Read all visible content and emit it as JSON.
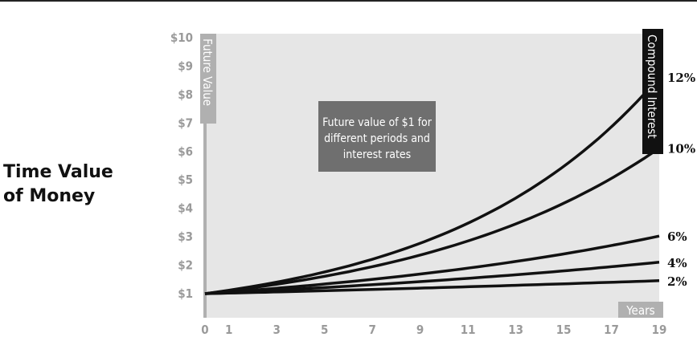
{
  "side_title": [
    "Time Value",
    "of Money"
  ],
  "chart_data": {
    "type": "line",
    "title": "",
    "xlabel": "Years",
    "ylabel": "Future Value",
    "legend_title": "Compound Interest",
    "annotation": [
      "Future value of $1 for",
      "different periods and",
      "interest rates"
    ],
    "x_ticks": [
      0,
      1,
      3,
      5,
      7,
      9,
      11,
      13,
      15,
      17,
      19
    ],
    "y_ticks": [
      "$1",
      "$2",
      "$3",
      "$4",
      "$5",
      "$6",
      "$7",
      "$8",
      "$9",
      "$10"
    ],
    "xlim": [
      0,
      19
    ],
    "ylim": [
      0.5,
      10
    ],
    "grid": false,
    "series": [
      {
        "name": "2%",
        "rate": 0.02
      },
      {
        "name": "4%",
        "rate": 0.04
      },
      {
        "name": "6%",
        "rate": 0.06
      },
      {
        "name": "10%",
        "rate": 0.1
      },
      {
        "name": "12%",
        "rate": 0.12
      }
    ],
    "colors": {
      "plot_bg": "#e6e6e6",
      "line": "#111111",
      "label_box": "#b0b0b0",
      "legend_box": "#111111",
      "annotation_box": "#6f6f6f",
      "tick": "#9a9a9a"
    }
  }
}
